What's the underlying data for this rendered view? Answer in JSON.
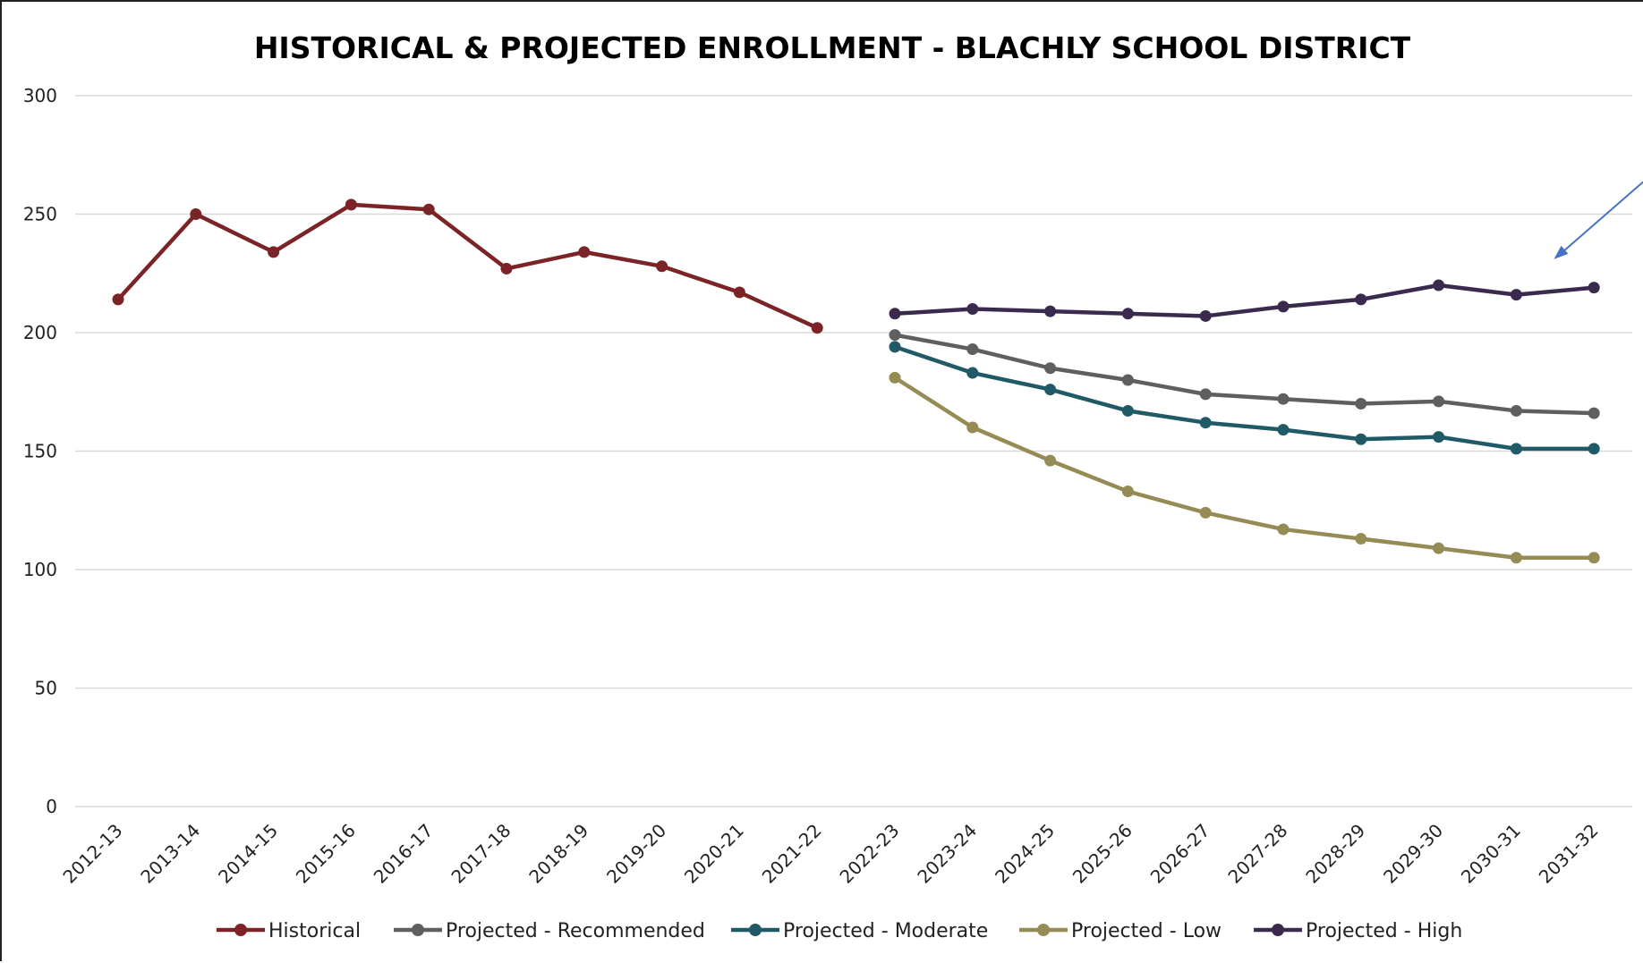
{
  "chart_data": {
    "type": "line",
    "title": "HISTORICAL & PROJECTED ENROLLMENT - BLACHLY SCHOOL DISTRICT",
    "xlabel": "",
    "ylabel": "",
    "categories": [
      "2012-13",
      "2013-14",
      "2014-15",
      "2015-16",
      "2016-17",
      "2017-18",
      "2018-19",
      "2019-20",
      "2020-21",
      "2021-22",
      "2022-23",
      "2023-24",
      "2024-25",
      "2025-26",
      "2026-27",
      "2027-28",
      "2028-29",
      "2029-30",
      "2030-31",
      "2031-32"
    ],
    "ylim": [
      0,
      300
    ],
    "yticks": [
      0,
      50,
      100,
      150,
      200,
      250,
      300
    ],
    "grid": true,
    "legend_position": "bottom",
    "series": [
      {
        "name": "Historical",
        "color": "#7B2326",
        "values": [
          214,
          250,
          234,
          254,
          252,
          227,
          234,
          228,
          217,
          202,
          null,
          null,
          null,
          null,
          null,
          null,
          null,
          null,
          null,
          null
        ]
      },
      {
        "name": "Projected - Recommended",
        "color": "#5F5F5F",
        "values": [
          null,
          null,
          null,
          null,
          null,
          null,
          null,
          null,
          null,
          null,
          199,
          193,
          185,
          180,
          174,
          172,
          170,
          171,
          167,
          166
        ]
      },
      {
        "name": "Projected - Moderate",
        "color": "#1F5A66",
        "values": [
          null,
          null,
          null,
          null,
          null,
          null,
          null,
          null,
          null,
          null,
          194,
          183,
          176,
          167,
          162,
          159,
          155,
          156,
          151,
          151
        ]
      },
      {
        "name": "Projected - Low",
        "color": "#958B55",
        "values": [
          null,
          null,
          null,
          null,
          null,
          null,
          null,
          null,
          null,
          null,
          181,
          160,
          146,
          133,
          124,
          117,
          113,
          109,
          105,
          105
        ]
      },
      {
        "name": "Projected - High",
        "color": "#3A2A4E",
        "values": [
          null,
          null,
          null,
          null,
          null,
          null,
          null,
          null,
          null,
          null,
          208,
          210,
          209,
          208,
          207,
          211,
          214,
          220,
          216,
          219
        ]
      }
    ],
    "annotations": [
      {
        "type": "arrow",
        "color": "#4472C4",
        "target_category": "2030-31",
        "target_value": 231
      }
    ]
  }
}
